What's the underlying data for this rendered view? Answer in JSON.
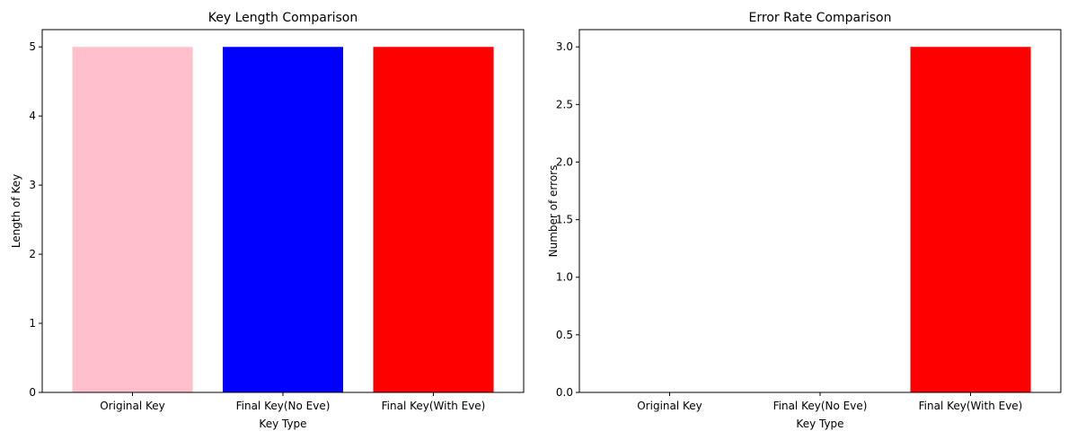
{
  "chart_data": [
    {
      "type": "bar",
      "title": "Key Length Comparison",
      "xlabel": "Key Type",
      "ylabel": "Length of Key",
      "categories": [
        "Original Key",
        "Final Key(No Eve)",
        "Final Key(With Eve)"
      ],
      "values": [
        5,
        5,
        5
      ],
      "colors": [
        "#ffc0cb",
        "#0000ff",
        "#ff0000"
      ],
      "ylim": [
        0,
        5.25
      ],
      "yticks": [
        0,
        1,
        2,
        3,
        4,
        5
      ],
      "ytick_labels": [
        "0",
        "1",
        "2",
        "3",
        "4",
        "5"
      ],
      "grid": false,
      "legend": "none"
    },
    {
      "type": "bar",
      "title": "Error Rate Comparison",
      "xlabel": "Key Type",
      "ylabel": "Number of errors",
      "categories": [
        "Original Key",
        "Final Key(No Eve)",
        "Final Key(With Eve)"
      ],
      "values": [
        0,
        0,
        3
      ],
      "colors": [
        "#ffc0cb",
        "#0000ff",
        "#ff0000"
      ],
      "ylim": [
        0,
        3.15
      ],
      "yticks": [
        0,
        0.5,
        1,
        1.5,
        2,
        2.5,
        3
      ],
      "ytick_labels": [
        "0.0",
        "0.5",
        "1.0",
        "1.5",
        "2.0",
        "2.5",
        "3.0"
      ],
      "grid": false,
      "legend": "none"
    }
  ]
}
